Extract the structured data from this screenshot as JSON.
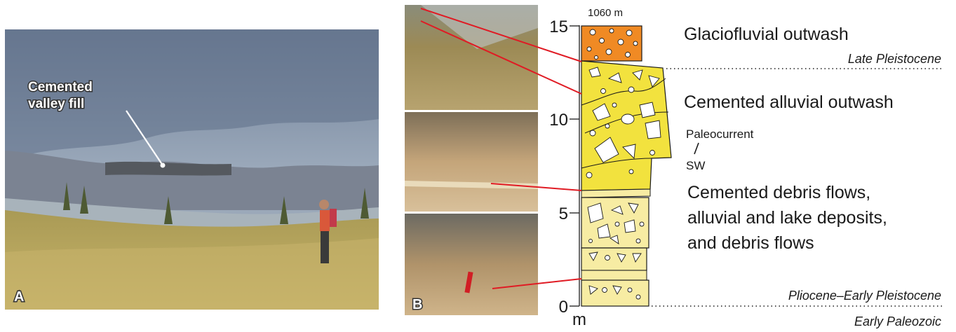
{
  "panel_a": {
    "callout": [
      "Cemented",
      "valley fill"
    ],
    "letter": "A"
  },
  "panel_b": {
    "letter": "B"
  },
  "column": {
    "top_label": "1060 m",
    "scale_ticks": [
      "15",
      "10",
      "5",
      "0"
    ],
    "unit": "m",
    "units": [
      {
        "label": "Glaciofluvial outwash"
      },
      {
        "label": "Cemented alluvial outwash"
      },
      {
        "label": [
          "Cemented debris flows,",
          "alluvial and lake deposits,",
          "and debris flows"
        ]
      }
    ],
    "paleocurrent": {
      "label": "Paleocurrent",
      "direction": "SW"
    },
    "boundaries": [
      "Late Pleistocene",
      "Pliocene–Early Pleistocene",
      "Early Paleozoic"
    ],
    "colors": {
      "gravel": "#f08a24",
      "cemented": "#f2e23e",
      "pale": "#f7eca3"
    }
  }
}
